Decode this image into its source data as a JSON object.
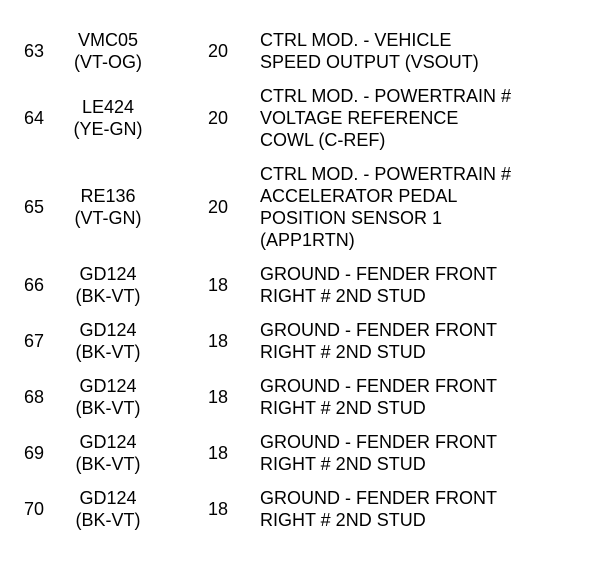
{
  "document": {
    "type": "connector-pinout-table",
    "columns": [
      "pin",
      "circuit_code_and_wire_color",
      "wire_gauge",
      "circuit_description"
    ]
  },
  "colors": {
    "text": "#000000",
    "background": "#ffffff"
  },
  "rows": [
    {
      "pin": "63",
      "circuit": "VMC05\n(VT-OG)",
      "gauge": "20",
      "description": "CTRL MOD. - VEHICLE\nSPEED OUTPUT (VSOUT)"
    },
    {
      "pin": "64",
      "circuit": "LE424\n(YE-GN)",
      "gauge": "20",
      "description": "CTRL MOD. - POWERTRAIN #\nVOLTAGE REFERENCE\nCOWL (C-REF)"
    },
    {
      "pin": "65",
      "circuit": "RE136\n(VT-GN)",
      "gauge": "20",
      "description": "CTRL MOD. - POWERTRAIN #\nACCELERATOR PEDAL\nPOSITION SENSOR 1\n(APP1RTN)"
    },
    {
      "pin": "66",
      "circuit": "GD124\n(BK-VT)",
      "gauge": "18",
      "description": "GROUND - FENDER FRONT\nRIGHT # 2ND STUD"
    },
    {
      "pin": "67",
      "circuit": "GD124\n(BK-VT)",
      "gauge": "18",
      "description": "GROUND - FENDER FRONT\nRIGHT # 2ND STUD"
    },
    {
      "pin": "68",
      "circuit": "GD124\n(BK-VT)",
      "gauge": "18",
      "description": "GROUND - FENDER FRONT\nRIGHT # 2ND STUD"
    },
    {
      "pin": "69",
      "circuit": "GD124\n(BK-VT)",
      "gauge": "18",
      "description": "GROUND - FENDER FRONT\nRIGHT # 2ND STUD"
    },
    {
      "pin": "70",
      "circuit": "GD124\n(BK-VT)",
      "gauge": "18",
      "description": "GROUND - FENDER FRONT\nRIGHT # 2ND STUD"
    }
  ]
}
